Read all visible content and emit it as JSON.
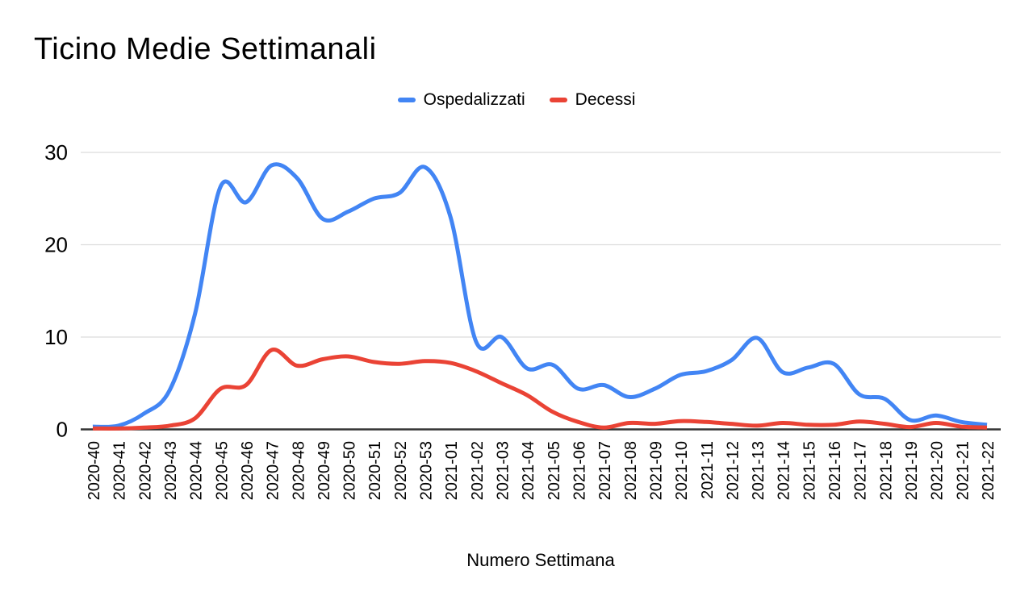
{
  "page": {
    "background": "#ffffff",
    "grid_color": "#dcdcdc",
    "axis_line_color": "#333333"
  },
  "title": "Ticino Medie Settimanali",
  "x_axis_title": "Numero Settimana",
  "chart_data": {
    "type": "line",
    "title": "Ticino Medie Settimanali",
    "xlabel": "Numero Settimana",
    "ylabel": "",
    "ylim": [
      0,
      30
    ],
    "y_ticks": [
      0,
      10,
      20,
      30
    ],
    "grid": true,
    "smooth": true,
    "legend_position": "top",
    "categories": [
      "2020-40",
      "2020-41",
      "2020-42",
      "2020-43",
      "2020-44",
      "2020-45",
      "2020-46",
      "2020-47",
      "2020-48",
      "2020-49",
      "2020-50",
      "2020-51",
      "2020-52",
      "2020-53",
      "2021-01",
      "2021-02",
      "2021-03",
      "2021-04",
      "2021-05",
      "2021-06",
      "2021-07",
      "2021-08",
      "2021-09",
      "2021-10",
      "2021-11",
      "2021-12",
      "2021-13",
      "2021-14",
      "2021-15",
      "2021-16",
      "2021-17",
      "2021-18",
      "2021-19",
      "2021-20",
      "2021-21",
      "2021-22"
    ],
    "series": [
      {
        "name": "Ospedalizzati",
        "color": "#4285F4",
        "values": [
          0.3,
          0.4,
          1.7,
          4.2,
          12.5,
          26.3,
          24.6,
          28.6,
          27.2,
          22.8,
          23.6,
          25.0,
          25.6,
          28.4,
          23.0,
          9.5,
          10.0,
          6.6,
          7.0,
          4.4,
          4.8,
          3.5,
          4.4,
          5.9,
          6.3,
          7.5,
          9.9,
          6.2,
          6.7,
          7.1,
          3.8,
          3.3,
          1.0,
          1.5,
          0.8,
          0.5
        ]
      },
      {
        "name": "Decessi",
        "color": "#EA4335",
        "values": [
          0.1,
          0.1,
          0.2,
          0.4,
          1.2,
          4.4,
          4.8,
          8.6,
          6.9,
          7.6,
          7.9,
          7.3,
          7.1,
          7.4,
          7.2,
          6.3,
          5.0,
          3.7,
          1.9,
          0.8,
          0.2,
          0.7,
          0.6,
          0.9,
          0.8,
          0.6,
          0.4,
          0.7,
          0.5,
          0.5,
          0.85,
          0.6,
          0.25,
          0.7,
          0.3,
          0.2
        ]
      }
    ]
  }
}
